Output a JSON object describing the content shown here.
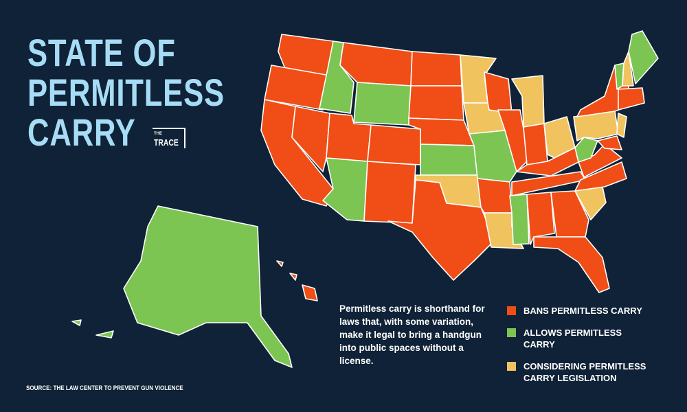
{
  "title": [
    "STATE OF",
    "PERMITLESS",
    "CARRY"
  ],
  "logo": {
    "small": "THE",
    "large": "TRACE"
  },
  "description": "Permitless carry is shorthand for laws that, with some variation, make it legal to bring a handgun into public spaces without a license.",
  "legend": [
    {
      "label": "BANS PERMITLESS CARRY",
      "color": "#f04e16"
    },
    {
      "label": "ALLOWS PERMITLESS CARRY",
      "color": "#7cc552"
    },
    {
      "label": "CONSIDERING PERMITLESS CARRY LEGISLATION",
      "color": "#f1c35f"
    }
  ],
  "source": "SOURCE: THE LAW CENTER TO PREVENT GUN VIOLENCE"
}
